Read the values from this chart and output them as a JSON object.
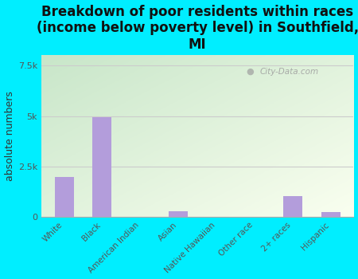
{
  "title": "Breakdown of poor residents within races\n(income below poverty level) in Southfield,\nMI",
  "categories": [
    "White",
    "Black",
    "American Indian",
    "Asian",
    "Native Hawaiian",
    "Other race",
    "2+ races",
    "Hispanic"
  ],
  "values": [
    2000,
    4950,
    10,
    300,
    20,
    10,
    1050,
    230
  ],
  "bar_color": "#b39ddb",
  "ylabel": "absolute numbers",
  "ylim": [
    0,
    8000
  ],
  "yticks": [
    0,
    2500,
    5000,
    7500
  ],
  "ytick_labels": [
    "0",
    "2.5k",
    "5k",
    "7.5k"
  ],
  "bg_outer": "#00eeff",
  "grid_color": "#cccccc",
  "watermark": "City-Data.com",
  "title_fontsize": 12,
  "ylabel_fontsize": 9,
  "xtick_fontsize": 7.5,
  "ytick_fontsize": 8,
  "grad_top_left": "#c8e6c9",
  "grad_bottom_right": "#fafff0"
}
